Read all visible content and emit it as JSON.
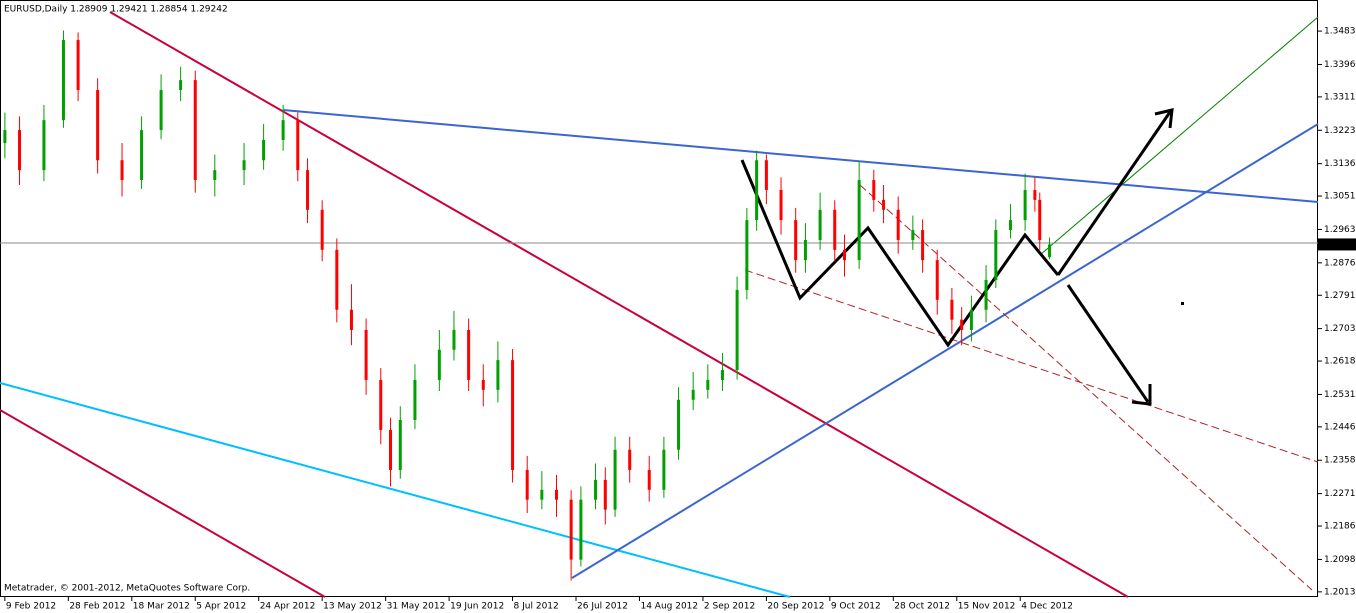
{
  "chart_data": {
    "type": "candlestick",
    "title": "EURUSD,Daily  1.28909 1.29421 1.28854 1.29242",
    "footer": "Metatrader, © 2001-2012, MetaQuotes Software Corp.",
    "up_color": "#00a000",
    "down_color": "#ff0000",
    "x": [
      0,
      3,
      8,
      12,
      15,
      19,
      24,
      28,
      32,
      36,
      39,
      43,
      49,
      53,
      57,
      60,
      62,
      65,
      68,
      71,
      74,
      77,
      79,
      81,
      84,
      89,
      92,
      95,
      98,
      101,
      104,
      107,
      110,
      113,
      116,
      118,
      121,
      123,
      125,
      128,
      132,
      135,
      138,
      141,
      144,
      147,
      150,
      152,
      154,
      156,
      159,
      162,
      164,
      167,
      170,
      172,
      175,
      178,
      180,
      183,
      186,
      188,
      191,
      194,
      196,
      198,
      201,
      203,
      206,
      209,
      211,
      212,
      214
    ],
    "open": [
      1.319,
      1.3224,
      1.3119,
      1.325,
      1.346,
      1.3329,
      1.3145,
      1.3093,
      1.3224,
      1.3329,
      1.3355,
      1.3093,
      1.3119,
      1.3145,
      1.3198,
      1.325,
      1.3119,
      1.3015,
      1.291,
      1.2753,
      1.27,
      1.2569,
      1.2438,
      1.2333,
      1.2464,
      1.2569,
      1.2648,
      1.27,
      1.2569,
      1.2543,
      1.2621,
      1.2333,
      1.2255,
      1.2281,
      1.2255,
      1.2098,
      1.2255,
      1.2307,
      1.2229,
      1.2386,
      1.2333,
      1.2281,
      1.2386,
      1.2517,
      1.2543,
      1.2569,
      1.2595,
      1.2805,
      1.2988,
      1.3145,
      1.3067,
      1.2988,
      1.2883,
      1.2936,
      1.3015,
      1.291,
      1.2883,
      1.3093,
      1.3041,
      1.3015,
      1.2936,
      1.2962,
      1.2883,
      1.2779,
      1.2727,
      1.27,
      1.2753,
      1.2831,
      1.2962,
      1.2988,
      1.3067,
      1.3041,
      1.28909
    ],
    "high": [
      1.327,
      1.326,
      1.329,
      1.3485,
      1.348,
      1.336,
      1.319,
      1.326,
      1.337,
      1.339,
      1.338,
      1.316,
      1.319,
      1.324,
      1.329,
      1.327,
      1.315,
      1.304,
      1.294,
      1.282,
      1.273,
      1.26,
      1.247,
      1.25,
      1.261,
      1.27,
      1.275,
      1.273,
      1.261,
      1.267,
      1.265,
      1.237,
      1.233,
      1.232,
      1.228,
      1.229,
      1.235,
      1.234,
      1.242,
      1.242,
      1.237,
      1.242,
      1.255,
      1.259,
      1.261,
      1.264,
      1.284,
      1.302,
      1.317,
      1.316,
      1.31,
      1.302,
      1.298,
      1.306,
      1.304,
      1.295,
      1.314,
      1.312,
      1.308,
      1.305,
      1.3,
      1.299,
      1.291,
      1.281,
      1.276,
      1.279,
      1.287,
      1.299,
      1.303,
      1.311,
      1.31,
      1.306,
      1.29421
    ],
    "low": [
      1.315,
      1.308,
      1.309,
      1.323,
      1.33,
      1.311,
      1.305,
      1.307,
      1.32,
      1.33,
      1.306,
      1.305,
      1.308,
      1.312,
      1.317,
      1.309,
      1.298,
      1.288,
      1.272,
      1.266,
      1.253,
      1.24,
      1.229,
      1.231,
      1.244,
      1.254,
      1.262,
      1.254,
      1.25,
      1.251,
      1.23,
      1.222,
      1.223,
      1.221,
      1.2043,
      1.208,
      1.223,
      1.219,
      1.221,
      1.23,
      1.225,
      1.226,
      1.236,
      1.249,
      1.252,
      1.254,
      1.257,
      1.278,
      1.296,
      1.303,
      1.295,
      1.285,
      1.285,
      1.291,
      1.288,
      1.284,
      1.286,
      1.301,
      1.298,
      1.29,
      1.291,
      1.285,
      1.274,
      1.269,
      1.266,
      1.267,
      1.272,
      1.281,
      1.294,
      1.296,
      1.301,
      1.291,
      1.28854
    ],
    "close": [
      1.3224,
      1.3119,
      1.325,
      1.346,
      1.3329,
      1.3145,
      1.3093,
      1.3224,
      1.3329,
      1.3355,
      1.3093,
      1.3119,
      1.3145,
      1.3198,
      1.325,
      1.3119,
      1.3015,
      1.291,
      1.2753,
      1.27,
      1.2569,
      1.2438,
      1.2333,
      1.2464,
      1.2569,
      1.2648,
      1.27,
      1.2569,
      1.2543,
      1.2621,
      1.2333,
      1.2255,
      1.2281,
      1.2255,
      1.2098,
      1.2255,
      1.2307,
      1.2229,
      1.2386,
      1.2333,
      1.2281,
      1.2386,
      1.2517,
      1.2543,
      1.2569,
      1.2595,
      1.2805,
      1.2988,
      1.3145,
      1.3067,
      1.2988,
      1.2883,
      1.2936,
      1.3015,
      1.291,
      1.2883,
      1.3093,
      1.3041,
      1.3015,
      1.2936,
      1.2962,
      1.2883,
      1.2779,
      1.2727,
      1.27,
      1.2753,
      1.2831,
      1.2962,
      1.2988,
      1.3067,
      1.3041,
      1.2936,
      1.29242
    ],
    "xlim": [
      -1,
      269
    ],
    "xticks": [
      {
        "value": 0,
        "label": "9 Feb 2012"
      },
      {
        "value": 13,
        "label": "28 Feb 2012"
      },
      {
        "value": 26,
        "label": "18 Mar 2012"
      },
      {
        "value": 39,
        "label": "5 Apr 2012"
      },
      {
        "value": 52,
        "label": "24 Apr 2012"
      },
      {
        "value": 65,
        "label": "13 May 2012"
      },
      {
        "value": 78,
        "label": "31 May 2012"
      },
      {
        "value": 91,
        "label": "19 Jun 2012"
      },
      {
        "value": 104,
        "label": "8 Jul 2012"
      },
      {
        "value": 117,
        "label": "26 Jul 2012"
      },
      {
        "value": 130,
        "label": "14 Aug 2012"
      },
      {
        "value": 143,
        "label": "2 Sep 2012"
      },
      {
        "value": 156,
        "label": "20 Sep 2012"
      },
      {
        "value": 169,
        "label": "9 Oct 2012"
      },
      {
        "value": 182,
        "label": "28 Oct 2012"
      },
      {
        "value": 195,
        "label": "15 Nov 2012"
      },
      {
        "value": 208,
        "label": "4 Dec 2012"
      }
    ],
    "ylim": [
      1.2,
      1.3565
    ],
    "yticks": [
      1.34835,
      {
        "value": 1.3396,
        "label": "1.33960"
      },
      {
        "value": 1.3311,
        "label": "1.33110"
      },
      1.32235,
      {
        "value": 1.3136,
        "label": "1.31360"
      },
      {
        "value": 1.3051,
        "label": "1.30510"
      },
      1.29635,
      {
        "value": 1.2876,
        "label": "1.28760"
      },
      {
        "value": 1.2791,
        "label": "1.27910"
      },
      1.27035,
      1.26185,
      {
        "value": 1.2531,
        "label": "1.25310"
      },
      {
        "value": 1.2446,
        "label": "1.24460"
      },
      1.23585,
      {
        "value": 1.2271,
        "label": "1.22710"
      },
      {
        "value": 1.2186,
        "label": "1.21860"
      },
      1.20985,
      1.20135
    ]
  }
}
